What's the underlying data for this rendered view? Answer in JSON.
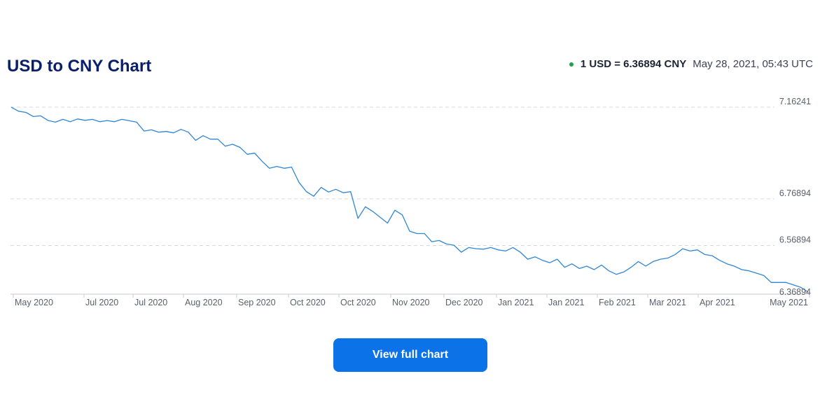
{
  "header": {
    "title": "USD to CNY Chart",
    "rate_text": "1 USD = 6.36894 CNY",
    "timestamp": "May 28, 2021, 05:43 UTC",
    "live_color": "#1fa34a"
  },
  "button": {
    "label": "View full chart"
  },
  "chart_data": {
    "type": "line",
    "title": "",
    "xlabel": "",
    "ylabel": "",
    "x_tick_labels": [
      "May 2020",
      "Jul 2020",
      "Jul 2020",
      "Aug 2020",
      "Sep 2020",
      "Oct 2020",
      "Oct 2020",
      "Nov 2020",
      "Dec 2020",
      "Jan 2021",
      "Jan 2021",
      "Feb 2021",
      "Mar 2021",
      "Apr 2021",
      "May 2021"
    ],
    "y_gridlines": [
      "7.16241",
      "6.76894",
      "6.56894",
      "6.36894"
    ],
    "ylim": [
      6.36894,
      7.16241
    ],
    "grid": "horizontal dashed",
    "line_color": "#2f86d6",
    "series": [
      {
        "values": [
          7.162,
          7.145,
          7.14,
          7.122,
          7.125,
          7.105,
          7.098,
          7.11,
          7.1,
          7.112,
          7.106,
          7.11,
          7.1,
          7.105,
          7.1,
          7.11,
          7.104,
          7.098,
          7.06,
          7.065,
          7.055,
          7.058,
          7.052,
          7.067,
          7.055,
          7.02,
          7.04,
          7.025,
          7.025,
          6.995,
          7.003,
          6.99,
          6.96,
          6.965,
          6.93,
          6.9,
          6.908,
          6.9,
          6.905,
          6.84,
          6.8,
          6.78,
          6.818,
          6.798,
          6.81,
          6.795,
          6.8,
          6.685,
          6.735,
          6.715,
          6.69,
          6.665,
          6.72,
          6.7,
          6.63,
          6.62,
          6.62,
          6.585,
          6.59,
          6.575,
          6.57,
          6.54,
          6.56,
          6.555,
          6.553,
          6.56,
          6.55,
          6.545,
          6.56,
          6.54,
          6.51,
          6.52,
          6.505,
          6.495,
          6.51,
          6.475,
          6.49,
          6.47,
          6.48,
          6.465,
          6.485,
          6.46,
          6.445,
          6.455,
          6.475,
          6.5,
          6.48,
          6.5,
          6.51,
          6.515,
          6.53,
          6.555,
          6.545,
          6.55,
          6.53,
          6.525,
          6.505,
          6.49,
          6.48,
          6.465,
          6.46,
          6.45,
          6.44,
          6.41,
          6.41,
          6.41,
          6.4,
          6.389,
          6.369
        ]
      }
    ]
  }
}
